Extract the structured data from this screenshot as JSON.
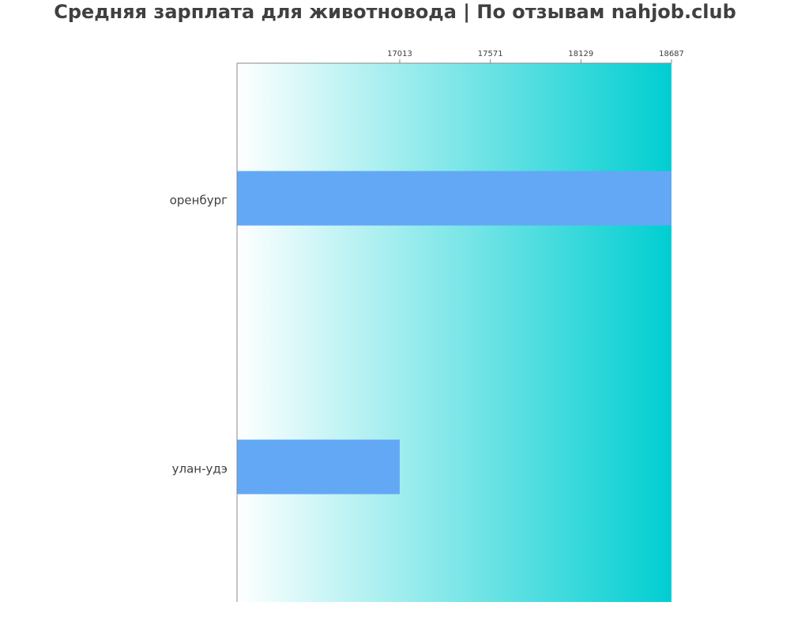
{
  "chart_data": {
    "type": "bar",
    "orientation": "horizontal",
    "title": "Средняя зарплата для животновода | По отзывам nahjob.club",
    "xlabel": "",
    "ylabel": "",
    "categories": [
      "оренбург",
      "улан-удэ"
    ],
    "values": [
      18687,
      17013
    ],
    "x_ticks": [
      17013,
      17571,
      18129,
      18687
    ],
    "x_axis_position": "top",
    "grid": false,
    "legend": "none",
    "colors": {
      "bar": "#63a8f5",
      "background_gradient_start": "#ffffff",
      "background_gradient_end": "#00ced1",
      "text": "#404040",
      "axis": "#888888"
    }
  }
}
